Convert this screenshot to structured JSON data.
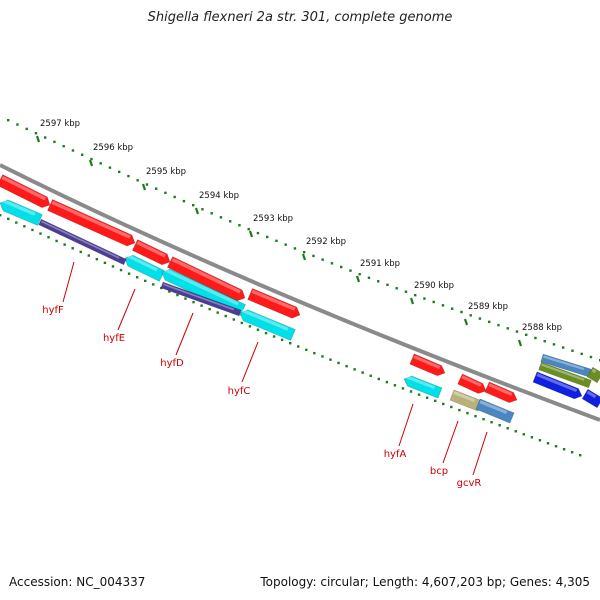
{
  "title": "Shigella flexneri 2a str. 301, complete genome",
  "footer": {
    "accession": "Accession: NC_004337",
    "summary": "Topology: circular; Length: 4,607,203 bp; Genes: 4,305"
  },
  "colors": {
    "backbone": "#8a8a8a",
    "ruler": "#1e7a1e",
    "gene_label": "#cc0000",
    "cds_forward": "#ff1a1a",
    "cds_reverse": "#00e0e8",
    "purple": "#4b3d96",
    "olive": "#b8b27a",
    "steelblue": "#4a86c0",
    "blue": "#1020e0",
    "green": "#6b8e23"
  },
  "ruler_ticks": [
    {
      "label": "2597 kbp"
    },
    {
      "label": "2596 kbp"
    },
    {
      "label": "2595 kbp"
    },
    {
      "label": "2594 kbp"
    },
    {
      "label": "2593 kbp"
    },
    {
      "label": "2592 kbp"
    },
    {
      "label": "2591 kbp"
    },
    {
      "label": "2590 kbp"
    },
    {
      "label": "2589 kbp"
    },
    {
      "label": "2588 kbp"
    }
  ],
  "gene_labels": [
    "hyfF",
    "hyfE",
    "hyfD",
    "hyfC",
    "hyfA",
    "bcp",
    "gcvR"
  ]
}
